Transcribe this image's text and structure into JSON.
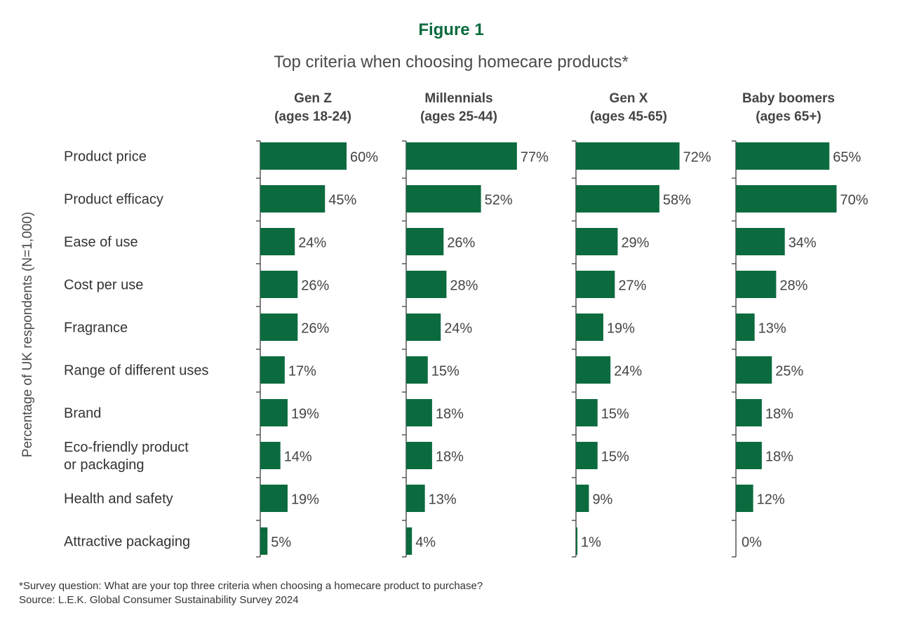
{
  "chart_data": {
    "type": "bar",
    "orientation": "horizontal",
    "figure_label": "Figure 1",
    "title": "Top criteria when choosing homecare products*",
    "ylabel": "Percentage of UK respondents (N=1,000)",
    "xlim": [
      0,
      100
    ],
    "grid": false,
    "bar_color": "#0b6b3e",
    "title_color": "#0b6b3e",
    "categories": [
      [
        "Product price"
      ],
      [
        "Product efficacy"
      ],
      [
        "Ease of use"
      ],
      [
        "Cost per use"
      ],
      [
        "Fragrance"
      ],
      [
        "Range of different uses"
      ],
      [
        "Brand"
      ],
      [
        "Eco-friendly product",
        "or packaging"
      ],
      [
        "Health and safety"
      ],
      [
        "Attractive packaging"
      ]
    ],
    "series": [
      {
        "name": "Gen Z",
        "subtitle": "(ages 18-24)",
        "values": [
          60,
          45,
          24,
          26,
          26,
          17,
          19,
          14,
          19,
          5
        ],
        "labels": [
          "60%",
          "45%",
          "24%",
          "26%",
          "26%",
          "17%",
          "19%",
          "14%",
          "19%",
          "5%"
        ]
      },
      {
        "name": "Millennials",
        "subtitle": "(ages 25-44)",
        "values": [
          77,
          52,
          26,
          28,
          24,
          15,
          18,
          18,
          13,
          4
        ],
        "labels": [
          "77%",
          "52%",
          "26%",
          "28%",
          "24%",
          "15%",
          "18%",
          "18%",
          "13%",
          "4%"
        ]
      },
      {
        "name": "Gen X",
        "subtitle": "(ages 45-65)",
        "values": [
          72,
          58,
          29,
          27,
          19,
          24,
          15,
          15,
          9,
          1
        ],
        "labels": [
          "72%",
          "58%",
          "29%",
          "27%",
          "19%",
          "24%",
          "15%",
          "15%",
          "9%",
          "1%"
        ]
      },
      {
        "name": "Baby boomers",
        "subtitle": "(ages 65+)",
        "values": [
          65,
          70,
          34,
          28,
          13,
          25,
          18,
          18,
          12,
          0
        ],
        "labels": [
          "65%",
          "70%",
          "34%",
          "28%",
          "13%",
          "25%",
          "18%",
          "18%",
          "12%",
          "0%"
        ]
      }
    ],
    "footnotes": [
      "*Survey question: What are your top three criteria when choosing a homecare product to purchase?",
      "Source: L.E.K. Global Consumer Sustainability Survey 2024"
    ]
  }
}
